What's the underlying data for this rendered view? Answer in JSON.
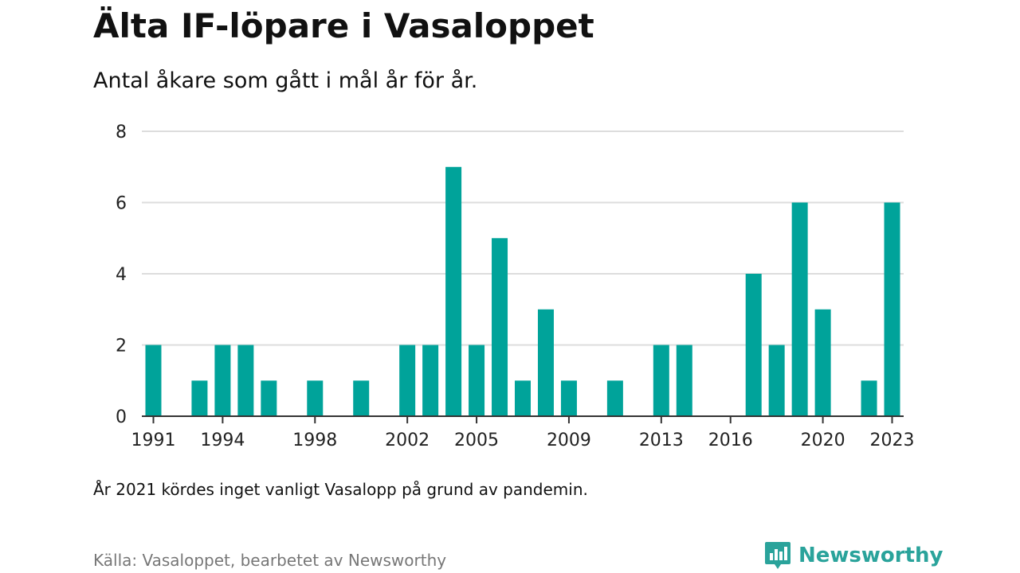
{
  "header": {
    "title": "Älta IF-löpare i Vasaloppet",
    "subtitle": "Antal åkare som gått i mål år för år."
  },
  "footer": {
    "note": "År 2021 kördes inget vanligt Vasalopp på grund av pandemin.",
    "source": "Källa: Vasaloppet, bearbetet av Newsworthy",
    "brand_name": "Newsworthy",
    "brand_icon": "newsworthy-logo-icon"
  },
  "colors": {
    "bar": "#00a39a",
    "grid": "#dddddd",
    "axis": "#333333",
    "brand": "#2aa39b"
  },
  "chart_data": {
    "type": "bar",
    "title": "Älta IF-löpare i Vasaloppet",
    "subtitle": "Antal åkare som gått i mål år för år.",
    "xlabel": "",
    "ylabel": "",
    "x": [
      1991,
      1992,
      1993,
      1994,
      1995,
      1996,
      1997,
      1998,
      1999,
      2000,
      2001,
      2002,
      2003,
      2004,
      2005,
      2006,
      2007,
      2008,
      2009,
      2010,
      2011,
      2012,
      2013,
      2014,
      2015,
      2016,
      2017,
      2018,
      2019,
      2020,
      2021,
      2022,
      2023
    ],
    "values": [
      2,
      0,
      1,
      2,
      2,
      1,
      0,
      1,
      0,
      1,
      0,
      2,
      2,
      7,
      2,
      5,
      1,
      3,
      1,
      0,
      1,
      0,
      2,
      2,
      0,
      0,
      4,
      2,
      6,
      3,
      0,
      1,
      6
    ],
    "xticks": [
      1991,
      1994,
      1998,
      2002,
      2005,
      2009,
      2013,
      2016,
      2020,
      2023
    ],
    "yticks": [
      0,
      2,
      4,
      6,
      8
    ],
    "ylim": [
      0,
      8
    ],
    "xlim": [
      1990.5,
      2023.5
    ],
    "grid": true,
    "legend": "none"
  }
}
